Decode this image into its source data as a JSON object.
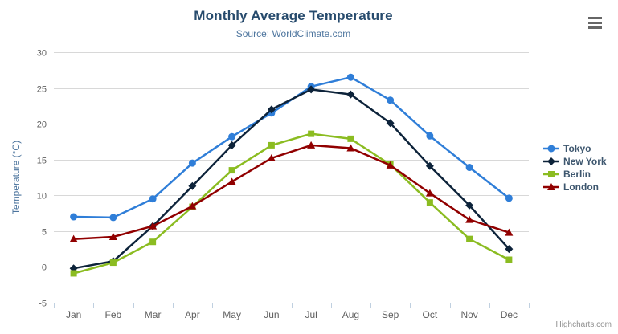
{
  "chart": {
    "title": "Monthly Average Temperature",
    "subtitle": "Source: WorldClimate.com",
    "y_axis_title": "Temperature (°C)",
    "credits": "Highcharts.com"
  },
  "colors": {
    "title": "#274b6d",
    "subtitle": "#4d759e",
    "axis_labels": "#606060",
    "axis_line": "#C0D0E0",
    "gridline": "#D8D8D8",
    "legend_text": "#3E576F",
    "credits": "#909090",
    "menu_icon": "#666666"
  },
  "icons": {
    "menu": "hamburger-icon"
  },
  "chart_data": {
    "type": "line",
    "title": "Monthly Average Temperature",
    "subtitle": "Source: WorldClimate.com",
    "xlabel": "",
    "ylabel": "Temperature (°C)",
    "categories": [
      "Jan",
      "Feb",
      "Mar",
      "Apr",
      "May",
      "Jun",
      "Jul",
      "Aug",
      "Sep",
      "Oct",
      "Nov",
      "Dec"
    ],
    "series": [
      {
        "name": "Tokyo",
        "color": "#2f7ed8",
        "marker": "circle",
        "values": [
          7.0,
          6.9,
          9.5,
          14.5,
          18.2,
          21.5,
          25.2,
          26.5,
          23.3,
          18.3,
          13.9,
          9.6
        ]
      },
      {
        "name": "New York",
        "color": "#0d233a",
        "marker": "diamond",
        "values": [
          -0.2,
          0.8,
          5.7,
          11.3,
          17.0,
          22.0,
          24.8,
          24.1,
          20.1,
          14.1,
          8.6,
          2.5
        ]
      },
      {
        "name": "Berlin",
        "color": "#8bbc21",
        "marker": "square",
        "values": [
          -0.9,
          0.6,
          3.5,
          8.4,
          13.5,
          17.0,
          18.6,
          17.9,
          14.3,
          9.0,
          3.9,
          1.0
        ]
      },
      {
        "name": "London",
        "color": "#910000",
        "marker": "triangle",
        "values": [
          3.9,
          4.2,
          5.7,
          8.5,
          11.9,
          15.2,
          17.0,
          16.6,
          14.2,
          10.3,
          6.6,
          4.8
        ]
      }
    ],
    "ylim": [
      -5,
      30
    ],
    "y_ticks": [
      -5,
      0,
      5,
      10,
      15,
      20,
      25,
      30
    ],
    "grid": true,
    "legend_position": "right"
  }
}
